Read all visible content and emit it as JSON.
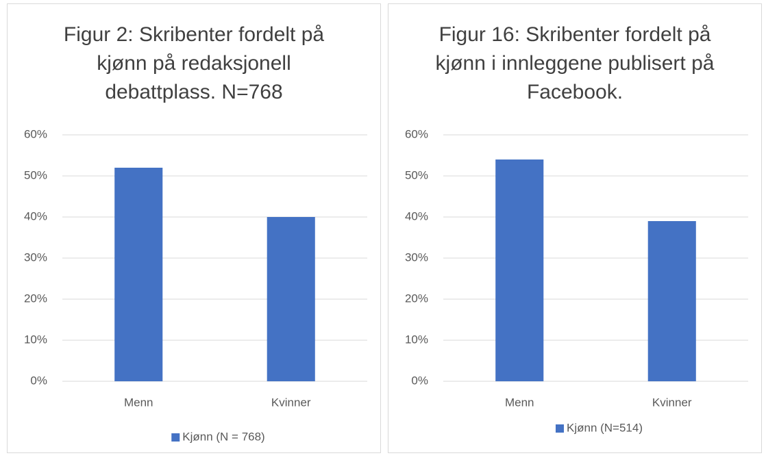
{
  "chart_data": [
    {
      "type": "bar",
      "title": "Figur 2: Skribenter fordelt på kjønn på redaksjonell debattplass. N=768",
      "categories": [
        "Menn",
        "Kvinner"
      ],
      "series": [
        {
          "name": "Kjønn (N = 768)",
          "color": "#4472c4",
          "values": [
            52,
            40
          ]
        }
      ],
      "ylim": [
        0,
        60
      ],
      "yticks": [
        {
          "value": 0,
          "label": "0%"
        },
        {
          "value": 10,
          "label": "10%"
        },
        {
          "value": 20,
          "label": "20%"
        },
        {
          "value": 30,
          "label": "30%"
        },
        {
          "value": 40,
          "label": "40%"
        },
        {
          "value": 50,
          "label": "50%"
        },
        {
          "value": 60,
          "label": "60%"
        }
      ],
      "grid": true,
      "legend": "bottom"
    },
    {
      "type": "bar",
      "title": "Figur 16: Skribenter fordelt på kjønn i innleggene publisert på Facebook.",
      "categories": [
        "Menn",
        "Kvinner"
      ],
      "series": [
        {
          "name": "Kjønn (N=514)",
          "color": "#4472c4",
          "values": [
            54,
            39
          ]
        }
      ],
      "ylim": [
        0,
        60
      ],
      "yticks": [
        {
          "value": 0,
          "label": "0%"
        },
        {
          "value": 10,
          "label": "10%"
        },
        {
          "value": 20,
          "label": "20%"
        },
        {
          "value": 30,
          "label": "30%"
        },
        {
          "value": 40,
          "label": "40%"
        },
        {
          "value": 50,
          "label": "50%"
        },
        {
          "value": 60,
          "label": "60%"
        }
      ],
      "grid": true,
      "legend": "bottom"
    }
  ]
}
